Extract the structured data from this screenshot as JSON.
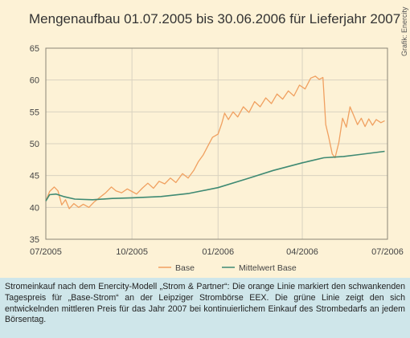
{
  "credit": "Grafik: Enercity",
  "caption": "Stromeinkauf nach dem Enercity-Modell „Strom & Partner“: Die orange Linie markiert den schwankenden Tagespreis für „Base-Strom“ an der Leipziger Strombörse EEX. Die grüne Linie zeigt den sich entwickelnden mittleren Preis für das Jahr 2007 bei kontinuierlichem Einkauf des Strombedarfs an jedem Börsentag.",
  "colors": {
    "base": "#f0a060",
    "mittelwert": "#3f8a73",
    "panel": "#fdf2d6",
    "caption_bg": "#cfe6ea"
  },
  "chart_data": {
    "type": "line",
    "title": "Mengenaufbau 01.07.2005 bis 30.06.2006 für Lieferjahr 2007",
    "xlabel": "",
    "ylabel": "",
    "ylim": [
      35,
      65
    ],
    "yticks": [
      35,
      40,
      45,
      50,
      55,
      60,
      65
    ],
    "xlim": [
      "2005-07-01",
      "2006-07-01"
    ],
    "xticks": [
      {
        "date": "2005-07-01",
        "label": "07/2005"
      },
      {
        "date": "2005-10-01",
        "label": "10/2005"
      },
      {
        "date": "2006-01-01",
        "label": "01/2006"
      },
      {
        "date": "2006-04-01",
        "label": "04/2006"
      },
      {
        "date": "2006-07-01",
        "label": "07/2006"
      }
    ],
    "grid": true,
    "legend_position": "bottom",
    "series": [
      {
        "name": "Base",
        "color": "#f0a060",
        "points": [
          [
            "2005-07-01",
            41.0
          ],
          [
            "2005-07-05",
            42.5
          ],
          [
            "2005-07-10",
            43.2
          ],
          [
            "2005-07-14",
            42.6
          ],
          [
            "2005-07-18",
            40.4
          ],
          [
            "2005-07-22",
            41.2
          ],
          [
            "2005-07-26",
            39.8
          ],
          [
            "2005-07-31",
            40.6
          ],
          [
            "2005-08-05",
            40.0
          ],
          [
            "2005-08-10",
            40.5
          ],
          [
            "2005-08-16",
            40.0
          ],
          [
            "2005-08-22",
            40.9
          ],
          [
            "2005-08-28",
            41.6
          ],
          [
            "2005-09-03",
            42.3
          ],
          [
            "2005-09-09",
            43.2
          ],
          [
            "2005-09-14",
            42.6
          ],
          [
            "2005-09-20",
            42.3
          ],
          [
            "2005-09-26",
            42.9
          ],
          [
            "2005-10-01",
            42.5
          ],
          [
            "2005-10-06",
            42.1
          ],
          [
            "2005-10-12",
            43.0
          ],
          [
            "2005-10-18",
            43.8
          ],
          [
            "2005-10-24",
            43.0
          ],
          [
            "2005-10-30",
            44.1
          ],
          [
            "2005-11-05",
            43.7
          ],
          [
            "2005-11-11",
            44.6
          ],
          [
            "2005-11-17",
            43.9
          ],
          [
            "2005-11-24",
            45.3
          ],
          [
            "2005-11-30",
            44.6
          ],
          [
            "2005-12-06",
            45.8
          ],
          [
            "2005-12-11",
            47.2
          ],
          [
            "2005-12-16",
            48.2
          ],
          [
            "2005-12-21",
            49.6
          ],
          [
            "2005-12-26",
            51.0
          ],
          [
            "2006-01-01",
            51.5
          ],
          [
            "2006-01-05",
            53.2
          ],
          [
            "2006-01-08",
            54.8
          ],
          [
            "2006-01-12",
            53.8
          ],
          [
            "2006-01-17",
            55.0
          ],
          [
            "2006-01-22",
            54.2
          ],
          [
            "2006-01-28",
            55.8
          ],
          [
            "2006-02-03",
            54.9
          ],
          [
            "2006-02-09",
            56.6
          ],
          [
            "2006-02-15",
            55.8
          ],
          [
            "2006-02-21",
            57.2
          ],
          [
            "2006-02-27",
            56.3
          ],
          [
            "2006-03-05",
            57.8
          ],
          [
            "2006-03-11",
            57.0
          ],
          [
            "2006-03-17",
            58.3
          ],
          [
            "2006-03-23",
            57.5
          ],
          [
            "2006-03-29",
            59.2
          ],
          [
            "2006-04-04",
            58.6
          ],
          [
            "2006-04-10",
            60.3
          ],
          [
            "2006-04-15",
            60.6
          ],
          [
            "2006-04-19",
            60.1
          ],
          [
            "2006-04-23",
            60.4
          ],
          [
            "2006-04-26",
            53.0
          ],
          [
            "2006-04-29",
            51.2
          ],
          [
            "2006-05-03",
            48.4
          ],
          [
            "2006-05-06",
            47.8
          ],
          [
            "2006-05-10",
            50.2
          ],
          [
            "2006-05-14",
            54.0
          ],
          [
            "2006-05-18",
            52.6
          ],
          [
            "2006-05-22",
            55.8
          ],
          [
            "2006-05-26",
            54.4
          ],
          [
            "2006-05-30",
            53.0
          ],
          [
            "2006-06-03",
            54.0
          ],
          [
            "2006-06-07",
            52.7
          ],
          [
            "2006-06-11",
            53.9
          ],
          [
            "2006-06-15",
            52.9
          ],
          [
            "2006-06-19",
            53.8
          ],
          [
            "2006-06-24",
            53.3
          ],
          [
            "2006-06-28",
            53.6
          ]
        ]
      },
      {
        "name": "Mittelwert Base",
        "color": "#3f8a73",
        "points": [
          [
            "2005-07-01",
            41.0
          ],
          [
            "2005-07-05",
            42.0
          ],
          [
            "2005-07-12",
            42.1
          ],
          [
            "2005-07-20",
            41.7
          ],
          [
            "2005-08-01",
            41.3
          ],
          [
            "2005-08-20",
            41.2
          ],
          [
            "2005-09-10",
            41.4
          ],
          [
            "2005-10-01",
            41.5
          ],
          [
            "2005-11-01",
            41.7
          ],
          [
            "2005-12-01",
            42.2
          ],
          [
            "2006-01-01",
            43.1
          ],
          [
            "2006-02-01",
            44.5
          ],
          [
            "2006-03-01",
            45.8
          ],
          [
            "2006-04-01",
            47.0
          ],
          [
            "2006-04-24",
            47.8
          ],
          [
            "2006-05-15",
            48.0
          ],
          [
            "2006-06-01",
            48.3
          ],
          [
            "2006-06-28",
            48.8
          ]
        ]
      }
    ]
  }
}
